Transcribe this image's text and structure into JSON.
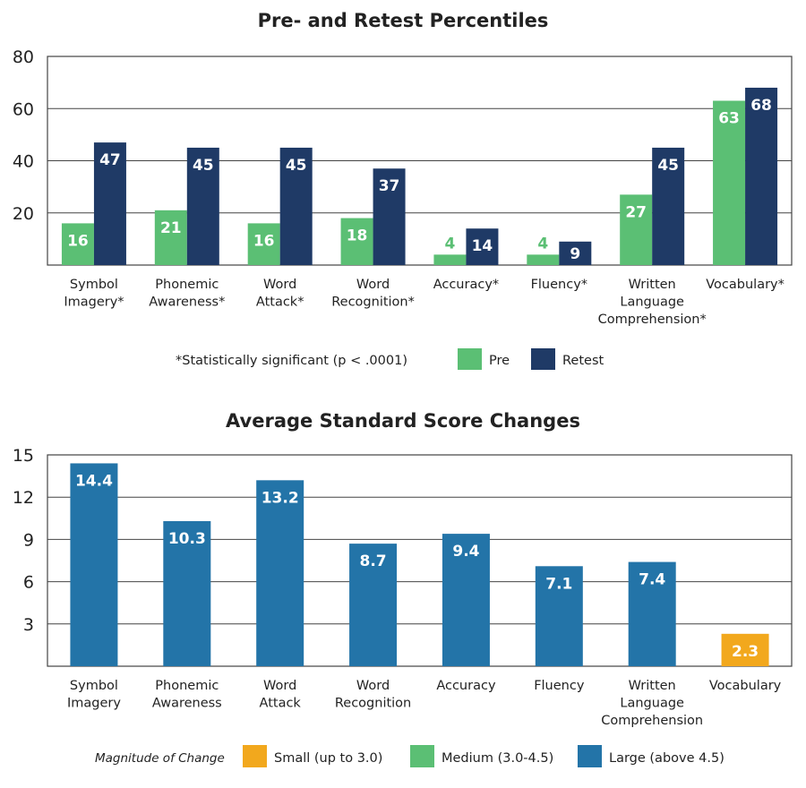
{
  "colors": {
    "pre": "#5BBF74",
    "retest": "#1F3A66",
    "small": "#F2A81D",
    "medium": "#5BBF74",
    "large": "#2374A8",
    "grid": "#444444",
    "frame": "#444444"
  },
  "chart_data": [
    {
      "type": "bar",
      "title": "Pre- and Retest Percentiles",
      "categories": [
        [
          "Symbol",
          "Imagery*"
        ],
        [
          "Phonemic",
          "Awareness*"
        ],
        [
          "Word",
          "Attack*"
        ],
        [
          "Word",
          "Recognition*"
        ],
        [
          "Accuracy*"
        ],
        [
          "Fluency*"
        ],
        [
          "Written",
          "Language",
          "Comprehension*"
        ],
        [
          "Vocabulary*"
        ]
      ],
      "series": [
        {
          "name": "Pre",
          "color_key": "pre",
          "values": [
            16,
            21,
            16,
            18,
            4,
            4,
            27,
            63
          ]
        },
        {
          "name": "Retest",
          "color_key": "retest",
          "values": [
            47,
            45,
            45,
            37,
            14,
            9,
            45,
            68
          ]
        }
      ],
      "yticks": [
        20,
        40,
        60,
        80
      ],
      "ylim": [
        0,
        80
      ],
      "grid": true,
      "legend_position": "bottom",
      "footnote": "*Statistically significant (p < .0001)"
    },
    {
      "type": "bar",
      "title": "Average Standard Score Changes",
      "categories": [
        [
          "Symbol",
          "Imagery"
        ],
        [
          "Phonemic",
          "Awareness"
        ],
        [
          "Word",
          "Attack"
        ],
        [
          "Word",
          "Recognition"
        ],
        [
          "Accuracy"
        ],
        [
          "Fluency"
        ],
        [
          "Written",
          "Language",
          "Comprehension"
        ],
        [
          "Vocabulary"
        ]
      ],
      "values": [
        14.4,
        10.3,
        13.2,
        8.7,
        9.4,
        7.1,
        7.4,
        2.3
      ],
      "value_labels": [
        "14.4",
        "10.3",
        "13.2",
        "8.7",
        "9.4",
        "7.1",
        "7.4",
        "2.3"
      ],
      "magnitude": [
        "large",
        "large",
        "large",
        "large",
        "large",
        "large",
        "large",
        "small"
      ],
      "yticks": [
        3,
        6,
        9,
        12,
        15
      ],
      "ylim": [
        0,
        15
      ],
      "grid": true,
      "legend_position": "bottom",
      "legend_title": "Magnitude of Change",
      "legend": [
        {
          "label": "Small (up to 3.0)",
          "color_key": "small"
        },
        {
          "label": "Medium (3.0-4.5)",
          "color_key": "medium"
        },
        {
          "label": "Large (above 4.5)",
          "color_key": "large"
        }
      ]
    }
  ]
}
